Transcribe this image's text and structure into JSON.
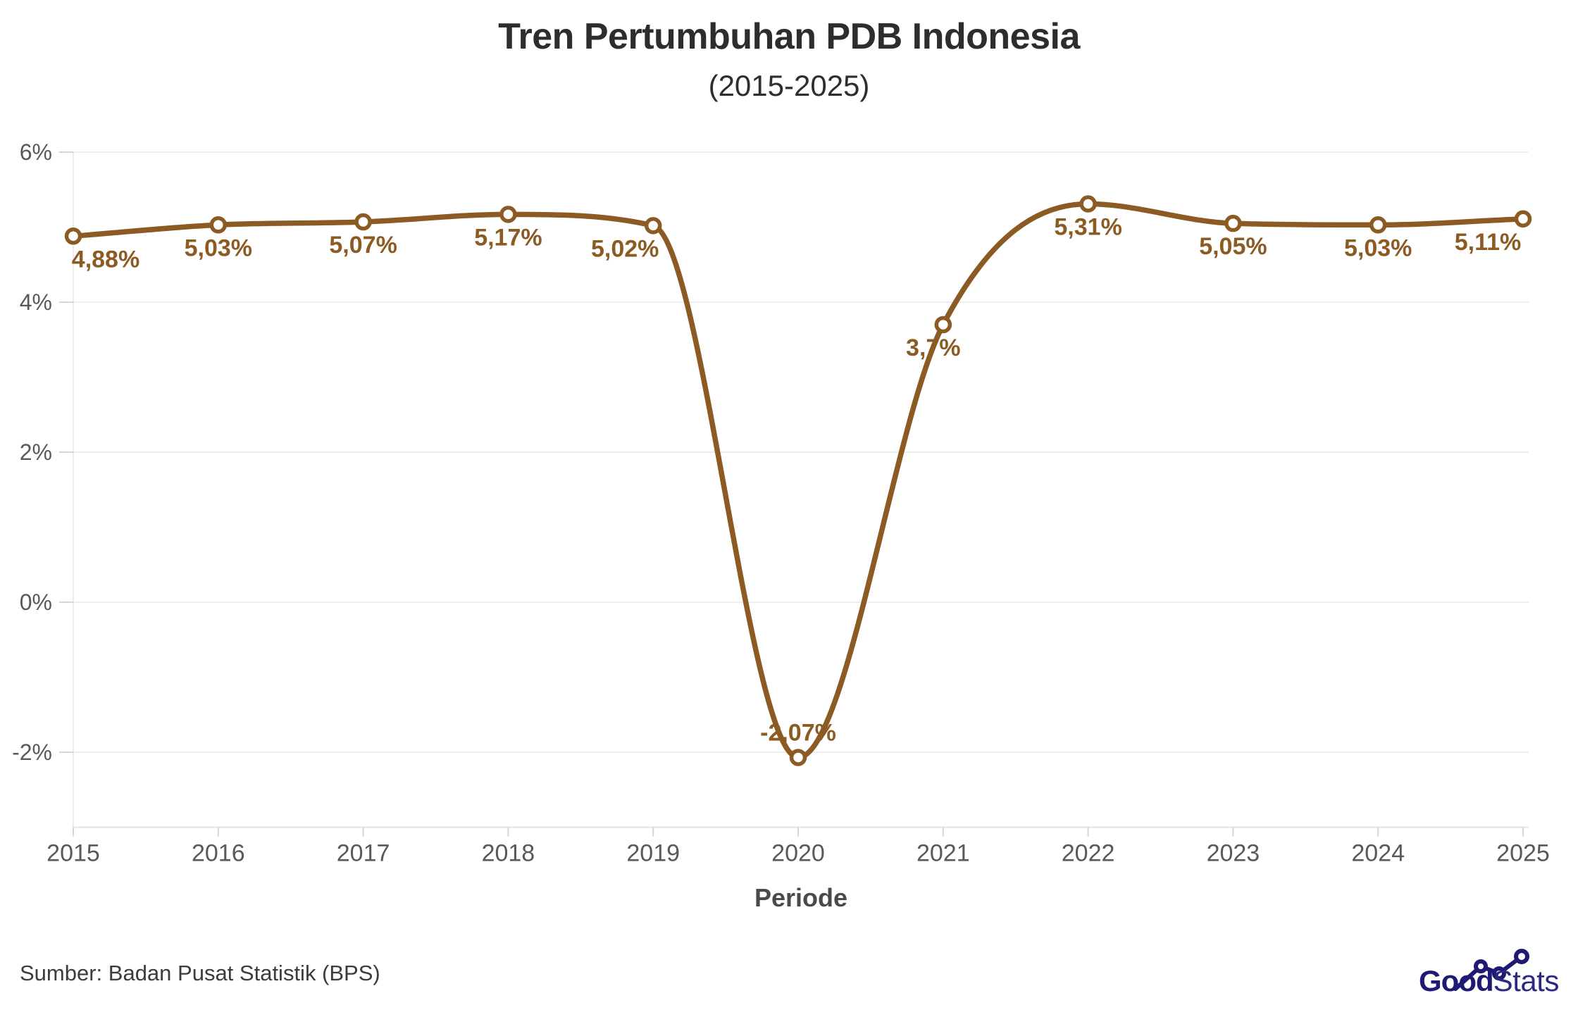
{
  "chart_data": {
    "type": "line",
    "title": "Tren Pertumbuhan PDB Indonesia",
    "subtitle": "(2015-2025)",
    "x": [
      "2015",
      "2016",
      "2017",
      "2018",
      "2019",
      "2020",
      "2021",
      "2022",
      "2023",
      "2024",
      "2025"
    ],
    "series": [
      {
        "name": "Pertumbuhan PDB",
        "values": [
          4.88,
          5.03,
          5.07,
          5.17,
          5.02,
          -2.07,
          3.7,
          5.31,
          5.05,
          5.03,
          5.11
        ],
        "labels": [
          "4,88%",
          "5,03%",
          "5,07%",
          "5,17%",
          "5,02%",
          "-2,07%",
          "3,7%",
          "5,31%",
          "5,05%",
          "5,03%",
          "5,11%"
        ]
      }
    ],
    "xlabel": "Periode",
    "ylabel": "",
    "ylim": [
      -3,
      6
    ],
    "y_ticks": [
      {
        "value": 6,
        "label": "6%"
      },
      {
        "value": 4,
        "label": "4%"
      },
      {
        "value": 2,
        "label": "2%"
      },
      {
        "value": 0,
        "label": "0%"
      },
      {
        "value": -2,
        "label": "-2%"
      }
    ],
    "grid": "horizontal",
    "legend": "none",
    "marker": "open-circle",
    "colors": {
      "line": "#8b5b23",
      "data_label": "#8b5b23",
      "marker_fill": "#ffffff",
      "grid": "#ededed",
      "axis": "#e3e3e3",
      "tick": "#d6d6d6",
      "tick_text": "#58595b"
    }
  },
  "footer": {
    "source": "Sumber: Badan Pusat Statistik (BPS)",
    "logo": {
      "bold": "Good",
      "light": "Stats",
      "color": "#1f1b72"
    }
  }
}
